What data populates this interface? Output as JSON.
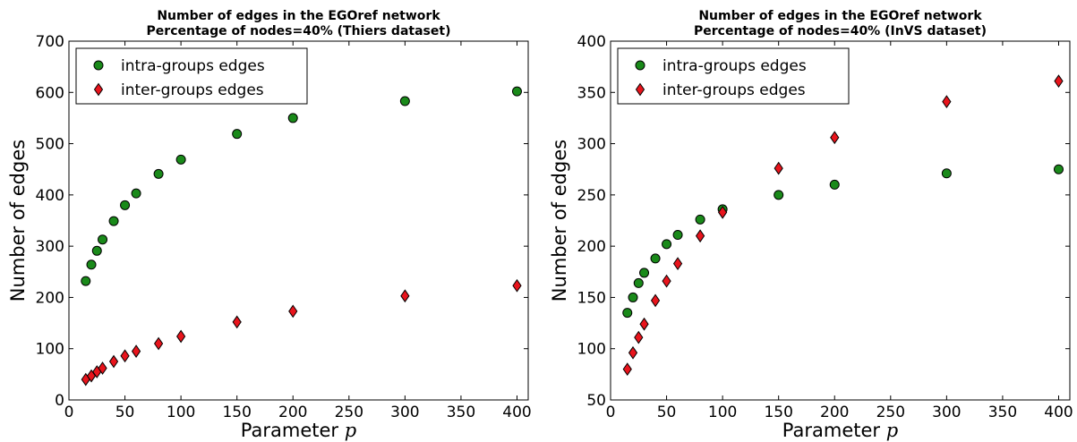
{
  "chart_data": [
    {
      "type": "scatter",
      "title": "Number of edges in the EGOref network",
      "subtitle": "Percentage of nodes=40% (Thiers dataset)",
      "xlabel": "Parameter",
      "xlabel_var": "p",
      "ylabel": "Number of edges",
      "xlim": [
        0,
        410
      ],
      "ylim": [
        0,
        700
      ],
      "xticks": [
        "0",
        "50",
        "100",
        "150",
        "200",
        "250",
        "300",
        "350",
        "400"
      ],
      "yticks": [
        "0",
        "100",
        "200",
        "300",
        "400",
        "500",
        "600",
        "700"
      ],
      "grid": false,
      "legend_position": "top-left",
      "x": [
        15,
        20,
        25,
        30,
        40,
        50,
        60,
        80,
        100,
        150,
        200,
        300,
        400
      ],
      "series": [
        {
          "name": "intra-groups edges",
          "marker": "circle",
          "color": "#1a8a1a",
          "values": [
            232,
            264,
            291,
            313,
            349,
            380,
            403,
            441,
            469,
            519,
            550,
            583,
            602
          ]
        },
        {
          "name": "inter-groups edges",
          "marker": "diamond",
          "color": "#e8141c",
          "values": [
            40,
            47,
            55,
            62,
            75,
            86,
            95,
            110,
            124,
            152,
            173,
            203,
            223
          ]
        }
      ]
    },
    {
      "type": "scatter",
      "title": "Number of edges in the EGOref network",
      "subtitle": "Percentage of nodes=40% (InVS dataset)",
      "xlabel": "Parameter",
      "xlabel_var": "p",
      "ylabel": "Number of edges",
      "xlim": [
        0,
        410
      ],
      "ylim": [
        50,
        400
      ],
      "xticks": [
        "0",
        "50",
        "100",
        "150",
        "200",
        "250",
        "300",
        "350",
        "400"
      ],
      "yticks": [
        "50",
        "100",
        "150",
        "200",
        "250",
        "300",
        "350",
        "400"
      ],
      "grid": false,
      "legend_position": "top-left",
      "x": [
        15,
        20,
        25,
        30,
        40,
        50,
        60,
        80,
        100,
        150,
        200,
        300,
        400
      ],
      "series": [
        {
          "name": "intra-groups edges",
          "marker": "circle",
          "color": "#1a8a1a",
          "values": [
            135,
            150,
            164,
            174,
            188,
            202,
            211,
            226,
            236,
            250,
            260,
            271,
            275
          ]
        },
        {
          "name": "inter-groups edges",
          "marker": "diamond",
          "color": "#e8141c",
          "values": [
            80,
            96,
            111,
            124,
            147,
            166,
            183,
            210,
            233,
            276,
            306,
            341,
            361
          ]
        }
      ]
    }
  ]
}
